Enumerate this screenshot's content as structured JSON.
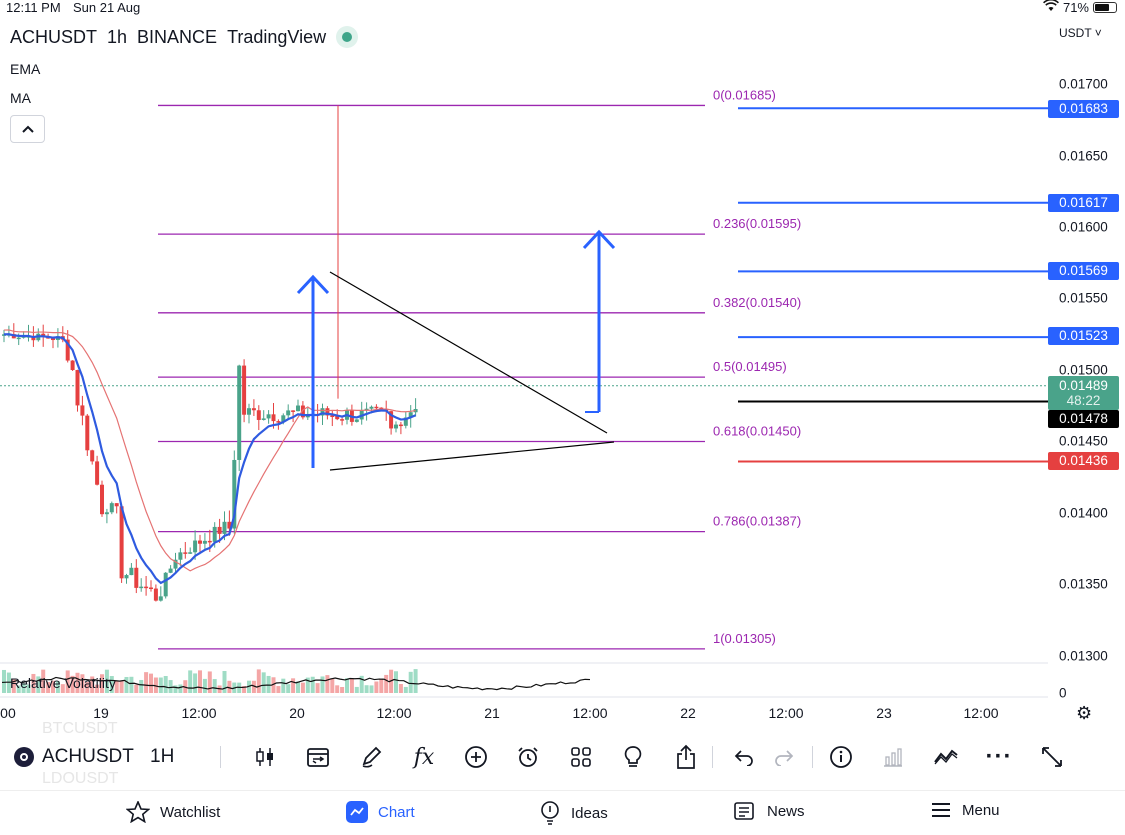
{
  "status": {
    "time": "12:11 PM",
    "date": "Sun 21 Aug",
    "battery": "71%",
    "battery_level": 0.71
  },
  "header": {
    "symbol": "ACHUSDT",
    "interval": "1h",
    "exchange": "BINANCE",
    "source": "TradingView"
  },
  "indicators": {
    "ema": "EMA",
    "ma": "MA",
    "volatility": "Relative Volatility",
    "collapse_icon": "chevron-up-icon"
  },
  "currency": "USDT",
  "price_axis": [
    "0.01700",
    "0.01650",
    "0.01600",
    "0.01550",
    "0.01500",
    "0.01450",
    "0.01400",
    "0.01350",
    "0.01300"
  ],
  "volume_axis": "0",
  "price_tags": {
    "t1": "0.01683",
    "t2": "0.01617",
    "t3": "0.01569",
    "t4": "0.01523",
    "last_price": "0.01489",
    "countdown": "48:22",
    "black": "0.01478",
    "red": "0.01436"
  },
  "fib": {
    "l0": "0(0.01685)",
    "l236": "0.236(0.01595)",
    "l382": "0.382(0.01540)",
    "l5": "0.5(0.01495)",
    "l618": "0.618(0.01450)",
    "l786": "0.786(0.01387)",
    "l1": "1(0.01305)"
  },
  "time_axis": [
    ":00",
    "19",
    "12:00",
    "20",
    "12:00",
    "21",
    "12:00",
    "22",
    "12:00",
    "23",
    "12:00"
  ],
  "toolbar": {
    "symbol": "ACHUSDT",
    "interval": "1H",
    "ghost_top": "BTCUSDT",
    "ghost_bottom": "LDOUSDT",
    "icons": [
      "candles-icon",
      "replay-icon",
      "brush-icon",
      "indicators-fx-icon",
      "add-icon",
      "alert-clock-icon",
      "layouts-icon",
      "ideas-lightbulb-icon",
      "share-icon",
      "undo-icon",
      "redo-icon",
      "info-icon",
      "bars-icon",
      "trend-icon",
      "more-icon",
      "fullscreen-icon"
    ]
  },
  "nav": {
    "watchlist": "Watchlist",
    "chart": "Chart",
    "ideas": "Ideas",
    "news": "News",
    "menu": "Menu"
  },
  "colors": {
    "up": "#4aa38a",
    "down": "#e54040",
    "blue": "#2962ff",
    "fib": "#9c27b0",
    "ema": "#2f5be0",
    "ma": "#e57373"
  },
  "chart_data": {
    "type": "candlestick",
    "symbol": "ACHUSDT",
    "interval": "1h",
    "ylim": [
      0.01295,
      0.01725
    ],
    "fib_levels": [
      {
        "ratio": 0,
        "price": 0.01685
      },
      {
        "ratio": 0.236,
        "price": 0.01595
      },
      {
        "ratio": 0.382,
        "price": 0.0154
      },
      {
        "ratio": 0.5,
        "price": 0.01495
      },
      {
        "ratio": 0.618,
        "price": 0.0145
      },
      {
        "ratio": 0.786,
        "price": 0.01387
      },
      {
        "ratio": 1,
        "price": 0.01305
      }
    ],
    "horizontal_levels": [
      0.01683,
      0.01617,
      0.01569,
      0.01523,
      0.01478,
      0.01436
    ],
    "last_price": 0.01489
  }
}
